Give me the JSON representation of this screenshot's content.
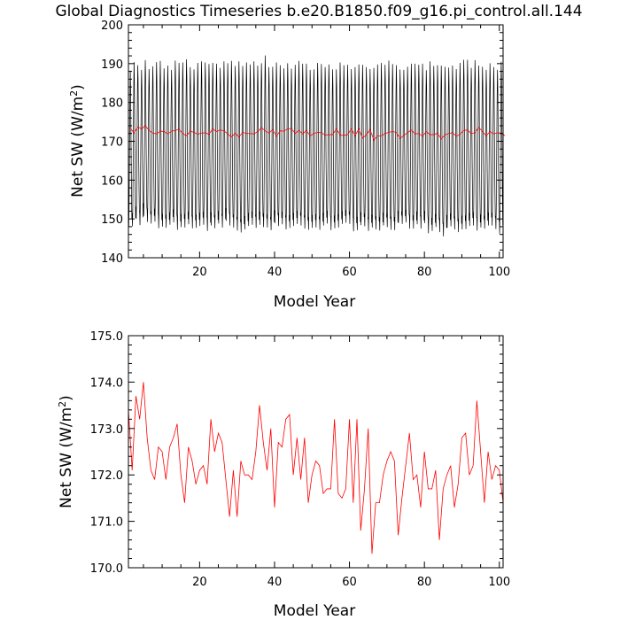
{
  "title": "Global Diagnostics Timeseries b.e20.B1850.f09_g16.pi_control.all.144",
  "colors": {
    "monthly": "#000000",
    "annual": "#ff0000",
    "frame": "#000000"
  },
  "chart_data": [
    {
      "type": "line",
      "name": "top-panel",
      "xlabel": "Model Year",
      "ylabel_main": "Net SW (W/m",
      "ylabel_sup": "2",
      "ylabel_close": ")",
      "xlim": [
        1,
        101
      ],
      "ylim": [
        140,
        200
      ],
      "xticks": [
        20,
        40,
        60,
        80,
        100
      ],
      "yticks": [
        140,
        150,
        160,
        170,
        180,
        190,
        200
      ],
      "xtick_labels": [
        "20",
        "40",
        "60",
        "80",
        "100"
      ],
      "ytick_labels": [
        "140",
        "150",
        "160",
        "170",
        "180",
        "190",
        "200"
      ],
      "series": [
        {
          "style": "monthly",
          "annual_max": [
            188.2,
            190.4,
            189.6,
            188.4,
            190.9,
            188.6,
            189.3,
            190.4,
            190.7,
            188.8,
            189.5,
            188.4,
            190.8,
            190.2,
            190.3,
            191.1,
            189.1,
            188.5,
            190.2,
            190.6,
            190.3,
            189.9,
            190.2,
            190.0,
            188.9,
            190.6,
            190.1,
            190.7,
            189.4,
            190.6,
            189.4,
            190.3,
            189.8,
            190.6,
            189.5,
            190.1,
            192.1,
            189.1,
            189.2,
            190.3,
            189.6,
            188.8,
            190.1,
            188.7,
            189.7,
            190.7,
            190.0,
            190.0,
            188.4,
            188.5,
            190.2,
            189.9,
            189.1,
            189.8,
            188.5,
            188.5,
            190.3,
            189.6,
            189.7,
            188.6,
            189.1,
            189.8,
            189.7,
            189.1,
            188.6,
            188.9,
            189.8,
            190.2,
            189.7,
            190.8,
            189.9,
            189.6,
            188.5,
            188.4,
            189.2,
            190.0,
            190.0,
            189.7,
            190.0,
            188.3,
            190.6,
            189.4,
            189.6,
            189.5,
            189.2,
            189.0,
            189.5,
            188.6,
            190.2,
            191.0,
            191.0,
            188.9,
            190.9,
            189.5,
            189.2,
            188.4,
            190.1,
            189.1,
            188.4,
            190.5
          ],
          "annual_min": [
            147.9,
            148.1,
            150.0,
            148.4,
            150.8,
            149.2,
            148.8,
            149.3,
            147.6,
            148.0,
            147.7,
            148.5,
            149.1,
            147.2,
            147.9,
            147.8,
            148.6,
            147.6,
            147.7,
            148.2,
            148.5,
            146.9,
            148.3,
            147.6,
            148.8,
            147.8,
            149.5,
            148.3,
            147.8,
            147.0,
            146.5,
            147.3,
            148.2,
            148.5,
            147.7,
            148.5,
            147.9,
            147.8,
            147.1,
            148.9,
            148.2,
            148.6,
            147.3,
            147.7,
            148.2,
            148.7,
            148.3,
            147.5,
            147.2,
            147.7,
            147.8,
            147.2,
            148.3,
            148.8,
            147.1,
            147.6,
            147.8,
            148.7,
            149.0,
            148.7,
            146.8,
            147.1,
            148.4,
            148.1,
            146.9,
            147.8,
            147.3,
            147.0,
            148.3,
            147.9,
            147.2,
            147.1,
            148.9,
            148.7,
            149.1,
            147.5,
            147.5,
            148.6,
            147.5,
            148.9,
            146.3,
            146.9,
            147.9,
            146.6,
            145.5,
            147.7,
            148.1,
            147.3,
            146.6,
            147.3,
            147.4,
            148.2,
            148.3,
            147.0,
            147.8,
            147.5,
            148.3,
            148.3,
            147.4,
            146.2
          ]
        },
        {
          "style": "annual",
          "ref": "annual_mean"
        }
      ]
    },
    {
      "type": "line",
      "name": "bottom-panel",
      "xlabel": "Model Year",
      "ylabel_main": "Net SW (W/m",
      "ylabel_sup": "2",
      "ylabel_close": ")",
      "xlim": [
        1,
        101
      ],
      "ylim": [
        170,
        175
      ],
      "xticks": [
        20,
        40,
        60,
        80,
        100
      ],
      "yticks": [
        170,
        171,
        172,
        173,
        174,
        175
      ],
      "xtick_labels": [
        "20",
        "40",
        "60",
        "80",
        "100"
      ],
      "ytick_labels": [
        "170.0",
        "171.0",
        "172.0",
        "173.0",
        "174.0",
        "175.0"
      ],
      "series": [
        {
          "style": "annual",
          "x_start": 1,
          "values": [
            173.4,
            172.1,
            173.7,
            173.2,
            174.0,
            172.8,
            172.1,
            171.9,
            172.6,
            172.5,
            171.9,
            172.6,
            172.8,
            173.1,
            172.0,
            171.4,
            172.6,
            172.3,
            171.8,
            172.1,
            172.2,
            171.8,
            173.2,
            172.5,
            172.9,
            172.7,
            171.9,
            171.1,
            172.1,
            171.1,
            172.3,
            172.0,
            172.0,
            171.9,
            172.5,
            173.5,
            172.7,
            172.1,
            173.0,
            171.3,
            172.7,
            172.6,
            173.2,
            173.3,
            172.0,
            172.8,
            171.9,
            172.8,
            171.4,
            172.0,
            172.3,
            172.2,
            171.6,
            171.7,
            171.7,
            173.2,
            171.6,
            171.5,
            171.7,
            173.2,
            171.4,
            173.2,
            170.8,
            171.7,
            173.0,
            170.3,
            171.4,
            171.4,
            172.0,
            172.3,
            172.5,
            172.3,
            170.7,
            171.5,
            172.2,
            172.9,
            171.9,
            172.0,
            171.3,
            172.5,
            171.7,
            171.7,
            172.1,
            170.6,
            171.7,
            172.0,
            172.2,
            171.3,
            171.8,
            172.8,
            172.9,
            172.0,
            172.2,
            173.6,
            172.5,
            171.4,
            172.5,
            171.9,
            172.2,
            172.1,
            171.4
          ]
        }
      ]
    }
  ]
}
